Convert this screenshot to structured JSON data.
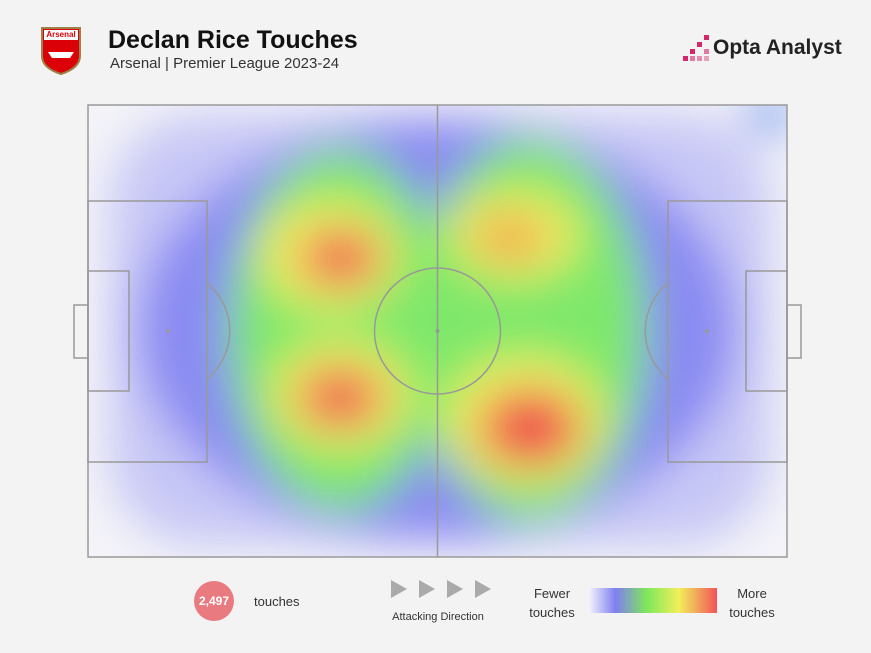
{
  "header": {
    "title": "Declan Rice Touches",
    "subtitle": "Arsenal | Premier League 2023-24",
    "brand": "Opta Analyst",
    "crest_label": "Arsenal"
  },
  "stats": {
    "total": "2,497",
    "total_label": "touches"
  },
  "direction": {
    "label": "Attacking Direction"
  },
  "legend": {
    "low": "Fewer touches",
    "high": "More touches"
  }
}
